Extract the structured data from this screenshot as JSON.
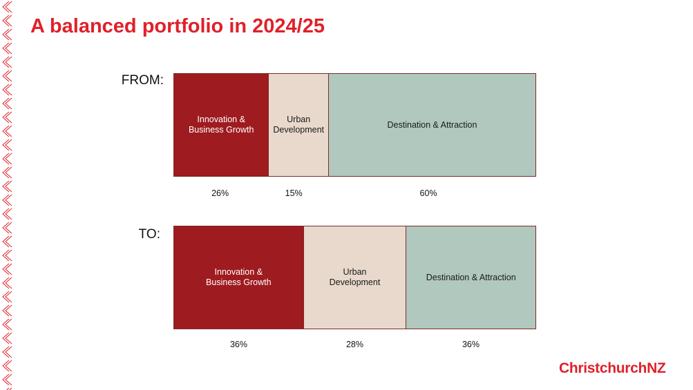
{
  "title": "A balanced portfolio in 2024/25",
  "logo_text": "ChristchurchNZ",
  "colors": {
    "brand_red": "#e0202a",
    "innovation": "#9e1b20",
    "urban": "#e8d9cc",
    "destination": "#b0c8bd",
    "border": "#7a2b2b"
  },
  "chart_data": [
    {
      "type": "bar",
      "row_label": "FROM:",
      "categories": [
        "Innovation &\nBusiness Growth",
        "Urban\nDevelopment",
        "Destination & Attraction"
      ],
      "values": [
        26,
        15,
        60
      ],
      "value_labels": [
        "26%",
        "15%",
        "60%"
      ],
      "colors": [
        "#9e1b20",
        "#e8d9cc",
        "#b0c8bd"
      ],
      "text_colors": [
        "#ffffff",
        "#1a1a1a",
        "#1a1a1a"
      ]
    },
    {
      "type": "bar",
      "row_label": "TO:",
      "categories": [
        "Innovation &\nBusiness Growth",
        "Urban\nDevelopment",
        "Destination & Attraction"
      ],
      "values": [
        36,
        28,
        36
      ],
      "value_labels": [
        "36%",
        "28%",
        "36%"
      ],
      "colors": [
        "#9e1b20",
        "#e8d9cc",
        "#b0c8bd"
      ],
      "text_colors": [
        "#ffffff",
        "#1a1a1a",
        "#1a1a1a"
      ]
    }
  ]
}
